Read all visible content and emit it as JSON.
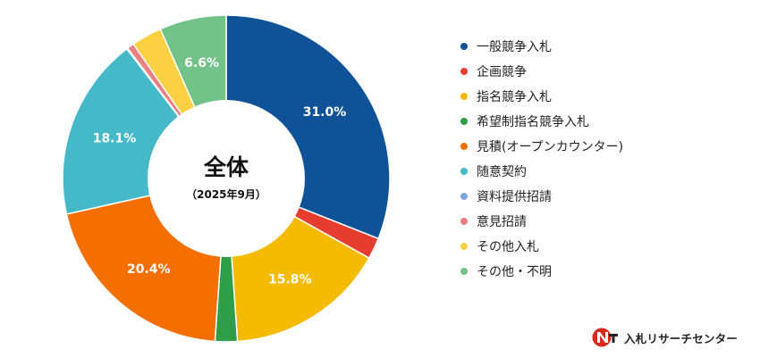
{
  "chart_data": {
    "type": "pie",
    "variant": "donut",
    "center_title": "全体",
    "center_subtitle": "（2025年9月）",
    "categories": [
      "一般競争入札",
      "企画競争",
      "指名競争入札",
      "希望制指名競争入札",
      "見積(オープンカウンター)",
      "随意契約",
      "資料提供招請",
      "意見招請",
      "その他入札",
      "その他・不明"
    ],
    "values": [
      31.0,
      2.1,
      15.8,
      2.2,
      20.4,
      18.1,
      0.1,
      0.7,
      3.0,
      6.6
    ],
    "data_labels": [
      "31.0%",
      "",
      "15.8%",
      "",
      "20.4%",
      "18.1%",
      "",
      "",
      "",
      "6.6%"
    ],
    "colors": [
      "#0f5298",
      "#e53e30",
      "#f5bb00",
      "#2e9e48",
      "#f56f00",
      "#46b9c8",
      "#7fa6e0",
      "#ec7f7f",
      "#fbd042",
      "#72c28a"
    ],
    "legend_position": "right"
  },
  "brand": {
    "text": "入札リサーチセンター"
  }
}
